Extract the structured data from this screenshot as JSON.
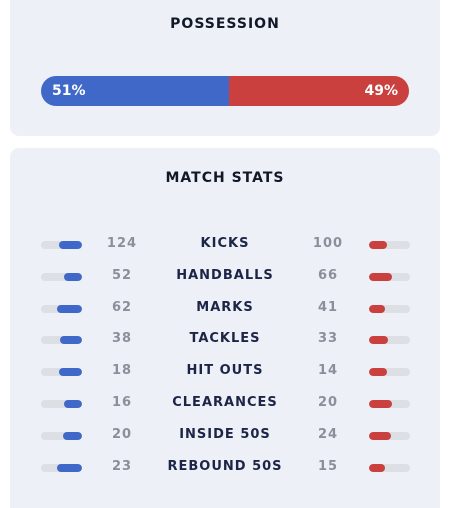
{
  "possession": {
    "title": "POSSESSION",
    "home_pct": 51,
    "away_pct": 49,
    "home_label": "51%",
    "away_label": "49%"
  },
  "match_stats": {
    "title": "MATCH STATS",
    "rows": [
      {
        "label": "KICKS",
        "home": 124,
        "away": 100
      },
      {
        "label": "HANDBALLS",
        "home": 52,
        "away": 66
      },
      {
        "label": "MARKS",
        "home": 62,
        "away": 41
      },
      {
        "label": "TACKLES",
        "home": 38,
        "away": 33
      },
      {
        "label": "HIT OUTS",
        "home": 18,
        "away": 14
      },
      {
        "label": "CLEARANCES",
        "home": 16,
        "away": 20
      },
      {
        "label": "INSIDE 50S",
        "home": 20,
        "away": 24
      },
      {
        "label": "REBOUND 50S",
        "home": 23,
        "away": 15
      }
    ]
  },
  "colors": {
    "home": "#3f68c8",
    "away": "#c9403f",
    "card_background": "#edf0f7"
  }
}
